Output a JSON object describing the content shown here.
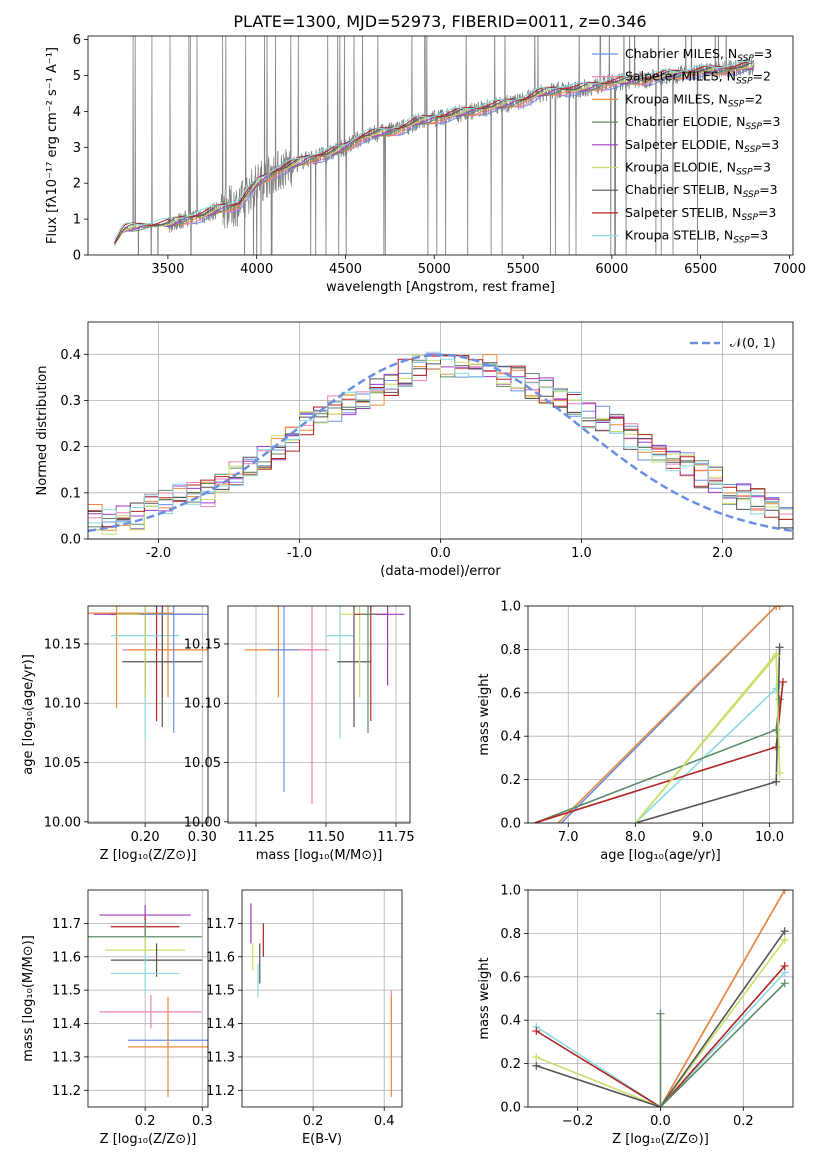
{
  "figure": {
    "title": "PLATE=1300, MJD=52973, FIBERID=0011, z=0.346"
  },
  "colors": {
    "blue": "#6b8fe0",
    "pink": "#ee82b4",
    "orange": "#f08a3c",
    "green": "#5e8c6a",
    "purple": "#a23bc4",
    "lime": "#c9e06a",
    "dark": "#555555",
    "red": "#b22222",
    "cyan": "#8cd9e3",
    "data": "#808080",
    "normal": "#6b8fe0"
  },
  "chart_data": [
    {
      "id": "spectrum",
      "type": "line",
      "xlabel": "wavelength [Angstrom, rest frame]",
      "ylabel": "Flux [fλ10⁻¹⁷ erg cm⁻² s⁻¹ A⁻¹]",
      "xlim": [
        3050,
        7020
      ],
      "ylim": [
        0,
        6.1
      ],
      "xticks": [
        3500,
        4000,
        4500,
        5000,
        5500,
        6000,
        6500,
        7000
      ],
      "yticks": [
        0,
        1,
        2,
        3,
        4,
        5,
        6
      ],
      "data_x": [
        3200,
        3250,
        3300,
        3400,
        3500,
        3600,
        3700,
        3800,
        3900,
        4000,
        4100,
        4200,
        4300,
        4400,
        4500,
        4600,
        4700,
        4800,
        4900,
        5000,
        5100,
        5200,
        5300,
        5400,
        5500,
        5600,
        5700,
        5800,
        5900,
        6000,
        6100,
        6200,
        6300,
        6400,
        6500,
        6600,
        6700,
        6800
      ],
      "data_y": [
        0.3,
        0.7,
        0.75,
        0.8,
        0.85,
        1.0,
        1.1,
        1.3,
        1.4,
        2.0,
        2.3,
        2.5,
        2.7,
        2.8,
        3.0,
        3.3,
        3.4,
        3.5,
        3.7,
        3.8,
        3.9,
        4.0,
        4.1,
        4.2,
        4.3,
        4.5,
        4.6,
        4.6,
        4.7,
        4.8,
        4.85,
        4.9,
        5.0,
        5.05,
        5.1,
        5.15,
        5.2,
        5.25
      ],
      "legend": [
        {
          "label": "Chabrier MILES, N",
          "sub": "SSP",
          "tail": "=3",
          "color": "blue"
        },
        {
          "label": "Salpeter MILES, N",
          "sub": "SSP",
          "tail": "=2",
          "color": "pink"
        },
        {
          "label": "Kroupa MILES, N",
          "sub": "SSP",
          "tail": "=2",
          "color": "orange"
        },
        {
          "label": "Chabrier ELODIE, N",
          "sub": "SSP",
          "tail": "=3",
          "color": "green"
        },
        {
          "label": "Salpeter ELODIE, N",
          "sub": "SSP",
          "tail": "=3",
          "color": "purple"
        },
        {
          "label": "Kroupa ELODIE, N",
          "sub": "SSP",
          "tail": "=3",
          "color": "lime"
        },
        {
          "label": "Chabrier STELIB, N",
          "sub": "SSP",
          "tail": "=3",
          "color": "dark"
        },
        {
          "label": "Salpeter STELIB, N",
          "sub": "SSP",
          "tail": "=3",
          "color": "red"
        },
        {
          "label": "Kroupa STELIB, N",
          "sub": "SSP",
          "tail": "=3",
          "color": "cyan"
        }
      ],
      "legend_position": "top-right",
      "grid": false
    },
    {
      "id": "residuals",
      "type": "line",
      "xlabel": "(data-model)/error",
      "ylabel": "Normed distribution",
      "xlim": [
        -2.5,
        2.5
      ],
      "ylim": [
        0,
        0.47
      ],
      "xticks": [
        -2,
        -1,
        0,
        1,
        2
      ],
      "yticks": [
        0.0,
        0.1,
        0.2,
        0.3,
        0.4
      ],
      "bin_width": 0.1,
      "histogram_x": [
        -2.5,
        -2.4,
        -2.3,
        -2.2,
        -2.1,
        -2.0,
        -1.9,
        -1.8,
        -1.7,
        -1.6,
        -1.5,
        -1.4,
        -1.3,
        -1.2,
        -1.1,
        -1.0,
        -0.9,
        -0.8,
        -0.7,
        -0.6,
        -0.5,
        -0.4,
        -0.3,
        -0.2,
        -0.1,
        0.0,
        0.1,
        0.2,
        0.3,
        0.4,
        0.5,
        0.6,
        0.7,
        0.8,
        0.9,
        1.0,
        1.1,
        1.2,
        1.3,
        1.4,
        1.5,
        1.6,
        1.7,
        1.8,
        1.9,
        2.0,
        2.1,
        2.2,
        2.3,
        2.4
      ],
      "histogram_y": [
        0.05,
        0.04,
        0.05,
        0.05,
        0.07,
        0.08,
        0.09,
        0.1,
        0.1,
        0.12,
        0.14,
        0.16,
        0.18,
        0.2,
        0.22,
        0.25,
        0.26,
        0.28,
        0.29,
        0.3,
        0.32,
        0.34,
        0.36,
        0.37,
        0.38,
        0.38,
        0.38,
        0.37,
        0.37,
        0.36,
        0.35,
        0.33,
        0.32,
        0.3,
        0.29,
        0.27,
        0.26,
        0.24,
        0.22,
        0.2,
        0.19,
        0.17,
        0.16,
        0.14,
        0.13,
        0.1,
        0.09,
        0.08,
        0.06,
        0.05
      ],
      "normal_label": "𝒩(0, 1)",
      "legend_position": "top-right",
      "grid": true
    },
    {
      "id": "age_vs_Z",
      "type": "scatter",
      "xlabel": "Z [log₁₀(Z/Z⊙)]",
      "ylabel": "age  [log₁₀(age/yr)]",
      "xlim": [
        0.1,
        0.31
      ],
      "ylim": [
        9.999,
        10.182
      ],
      "xticks": [
        0.2,
        0.3
      ],
      "yticks": [
        10.0,
        10.05,
        10.1,
        10.15
      ],
      "points": [
        {
          "x": 0.15,
          "y": 10.176,
          "xerr": 0.1,
          "yerr": 0.08,
          "color": "orange"
        },
        {
          "x": 0.22,
          "y": 10.175,
          "xerr": 0.08,
          "yerr": 0.09,
          "color": "red"
        },
        {
          "x": 0.2,
          "y": 10.175,
          "xerr": 0.09,
          "yerr": 0.06,
          "color": "purple"
        },
        {
          "x": 0.2,
          "y": 10.157,
          "xerr": 0.06,
          "yerr": 0.087,
          "color": "cyan"
        },
        {
          "x": 0.23,
          "y": 10.145,
          "xerr": 0.07,
          "yerr": 0.04,
          "color": "pink"
        },
        {
          "x": 0.24,
          "y": 10.145,
          "xerr": 0.07,
          "yerr": 0.04,
          "color": "orange"
        },
        {
          "x": 0.23,
          "y": 10.135,
          "xerr": 0.07,
          "yerr": 0.055,
          "color": "dark"
        },
        {
          "x": 0.2,
          "y": 10.175,
          "xerr": 0.05,
          "yerr": 0.07,
          "color": "green"
        },
        {
          "x": 0.2,
          "y": 10.175,
          "xerr": 0.05,
          "yerr": 0.07,
          "color": "lime"
        },
        {
          "x": 0.25,
          "y": 10.175,
          "xerr": 0.06,
          "yerr": 0.1,
          "color": "blue"
        }
      ],
      "grid": true
    },
    {
      "id": "age_vs_mass",
      "type": "scatter",
      "xlabel": "mass [log₁₀(M/M⊙)]",
      "ylabel": "",
      "xlim": [
        11.15,
        11.8
      ],
      "ylim": [
        9.999,
        10.182
      ],
      "xticks": [
        11.25,
        11.5,
        11.75
      ],
      "yticks": [
        10.0,
        10.05,
        10.1,
        10.15
      ],
      "points": [
        {
          "x": 11.33,
          "y": 10.145,
          "xerr": 0.12,
          "yerr": 0.04,
          "color": "orange"
        },
        {
          "x": 11.45,
          "y": 10.145,
          "xerr": 0.06,
          "yerr": 0.13,
          "color": "pink"
        },
        {
          "x": 11.35,
          "y": 10.145,
          "xerr": 0.05,
          "yerr": 0.12,
          "color": "blue"
        },
        {
          "x": 11.55,
          "y": 10.157,
          "xerr": 0.05,
          "yerr": 0.087,
          "color": "cyan"
        },
        {
          "x": 11.6,
          "y": 10.135,
          "xerr": 0.06,
          "yerr": 0.055,
          "color": "dark"
        },
        {
          "x": 11.62,
          "y": 10.175,
          "xerr": 0.07,
          "yerr": 0.07,
          "color": "lime"
        },
        {
          "x": 11.66,
          "y": 10.175,
          "xerr": 0.06,
          "yerr": 0.09,
          "color": "red"
        },
        {
          "x": 11.72,
          "y": 10.175,
          "xerr": 0.06,
          "yerr": 0.06,
          "color": "purple"
        },
        {
          "x": 11.65,
          "y": 10.175,
          "xerr": 0.03,
          "yerr": 0.1,
          "color": "green"
        }
      ],
      "grid": true
    },
    {
      "id": "weight_vs_age",
      "type": "line",
      "xlabel": "age  [log₁₀(age/yr)]",
      "ylabel": "mass weight",
      "xlim": [
        6.4,
        10.35
      ],
      "ylim": [
        0.0,
        1.0
      ],
      "xticks": [
        7,
        8,
        9,
        10
      ],
      "yticks": [
        0.0,
        0.2,
        0.4,
        0.6,
        0.8,
        1.0
      ],
      "series": [
        {
          "x": [
            6.9,
            10.1,
            10.15
          ],
          "y": [
            0,
            1.0,
            1.0
          ],
          "color": "blue"
        },
        {
          "x": [
            6.85,
            10.1,
            10.15
          ],
          "y": [
            0,
            1.0,
            1.0
          ],
          "color": "orange"
        },
        {
          "x": [
            8.0,
            10.1,
            10.15
          ],
          "y": [
            0,
            0.78,
            0.23
          ],
          "color": "lime"
        },
        {
          "x": [
            8.0,
            10.1,
            10.15
          ],
          "y": [
            0,
            0.62,
            0.64
          ],
          "color": "cyan"
        },
        {
          "x": [
            6.5,
            10.1,
            10.15
          ],
          "y": [
            0,
            0.43,
            0.57
          ],
          "color": "green"
        },
        {
          "x": [
            6.5,
            10.1,
            10.2
          ],
          "y": [
            0,
            0.35,
            0.65
          ],
          "color": "red"
        },
        {
          "x": [
            8.0,
            10.1,
            10.15
          ],
          "y": [
            0,
            0.19,
            0.81
          ],
          "color": "dark"
        },
        {
          "x": [
            8.0,
            10.1,
            10.15
          ],
          "y": [
            0,
            0.77,
            0.23
          ],
          "color": "lime"
        }
      ],
      "grid": true
    },
    {
      "id": "mass_vs_Z",
      "type": "scatter",
      "xlabel": "Z [log₁₀(Z/Z⊙)]",
      "ylabel": "mass [log₁₀(M/M⊙)]",
      "xlim": [
        0.1,
        0.31
      ],
      "ylim": [
        11.15,
        11.8
      ],
      "xticks": [
        0.2,
        0.3
      ],
      "yticks": [
        11.2,
        11.3,
        11.4,
        11.5,
        11.6,
        11.7
      ],
      "points": [
        {
          "x": 0.2,
          "y": 11.725,
          "xerr": 0.08,
          "yerr": 0.03,
          "color": "purple"
        },
        {
          "x": 0.2,
          "y": 11.69,
          "xerr": 0.06,
          "yerr": 0.03,
          "color": "red"
        },
        {
          "x": 0.2,
          "y": 11.66,
          "xerr": 0.1,
          "yerr": 0.05,
          "color": "green"
        },
        {
          "x": 0.2,
          "y": 11.62,
          "xerr": 0.07,
          "yerr": 0.04,
          "color": "lime"
        },
        {
          "x": 0.22,
          "y": 11.59,
          "xerr": 0.08,
          "yerr": 0.05,
          "color": "dark"
        },
        {
          "x": 0.2,
          "y": 11.55,
          "xerr": 0.06,
          "yerr": 0.06,
          "color": "cyan"
        },
        {
          "x": 0.21,
          "y": 11.435,
          "xerr": 0.09,
          "yerr": 0.05,
          "color": "pink"
        },
        {
          "x": 0.24,
          "y": 11.35,
          "xerr": 0.07,
          "yerr": 0.03,
          "color": "blue"
        },
        {
          "x": 0.24,
          "y": 11.33,
          "xerr": 0.07,
          "yerr": 0.15,
          "color": "orange"
        }
      ],
      "grid": true
    },
    {
      "id": "mass_vs_ebv",
      "type": "scatter",
      "xlabel": "E(B-V)",
      "ylabel": "",
      "xlim": [
        0.0,
        0.45
      ],
      "ylim": [
        11.15,
        11.8
      ],
      "xticks": [
        0.2,
        0.4
      ],
      "yticks": [
        11.2,
        11.3,
        11.4,
        11.5,
        11.6,
        11.7
      ],
      "points": [
        {
          "x": 0.025,
          "y": 11.7,
          "yerr": 0.06,
          "color": "purple"
        },
        {
          "x": 0.06,
          "y": 11.65,
          "yerr": 0.05,
          "color": "red"
        },
        {
          "x": 0.03,
          "y": 11.6,
          "yerr": 0.04,
          "color": "lime"
        },
        {
          "x": 0.05,
          "y": 11.58,
          "yerr": 0.06,
          "color": "dark"
        },
        {
          "x": 0.045,
          "y": 11.53,
          "yerr": 0.05,
          "color": "cyan"
        },
        {
          "x": 0.42,
          "y": 11.45,
          "yerr": 0.05,
          "color": "pink"
        },
        {
          "x": 0.42,
          "y": 11.33,
          "yerr": 0.15,
          "color": "orange"
        }
      ],
      "grid": true
    },
    {
      "id": "weight_vs_Z",
      "type": "line",
      "xlabel": "Z [log₁₀(Z/Z⊙)]",
      "ylabel": "mass weight",
      "xlim": [
        -0.32,
        0.32
      ],
      "ylim": [
        0.0,
        1.0
      ],
      "xticks": [
        -0.2,
        0.0,
        0.2
      ],
      "yticks": [
        0.0,
        0.2,
        0.4,
        0.6,
        0.8,
        1.0
      ],
      "series": [
        {
          "x": [
            0.0,
            0.3
          ],
          "y": [
            0,
            1.0
          ],
          "color": "blue"
        },
        {
          "x": [
            0.0,
            0.3
          ],
          "y": [
            0,
            1.0
          ],
          "color": "orange"
        },
        {
          "x": [
            -0.3,
            0.0,
            0.3
          ],
          "y": [
            0.37,
            0,
            0.62
          ],
          "color": "cyan"
        },
        {
          "x": [
            -0.3,
            0.0,
            0.3
          ],
          "y": [
            0.35,
            0,
            0.65
          ],
          "color": "red"
        },
        {
          "x": [
            -0.3,
            0.0,
            0.3
          ],
          "y": [
            0.23,
            0,
            0.77
          ],
          "color": "lime"
        },
        {
          "x": [
            -0.3,
            0.0,
            0.3
          ],
          "y": [
            0.19,
            0,
            0.81
          ],
          "color": "dark"
        },
        {
          "x": [
            0.0,
            0.0,
            0.3
          ],
          "y": [
            0.43,
            0,
            0.57
          ],
          "color": "green"
        }
      ],
      "grid": true
    }
  ]
}
